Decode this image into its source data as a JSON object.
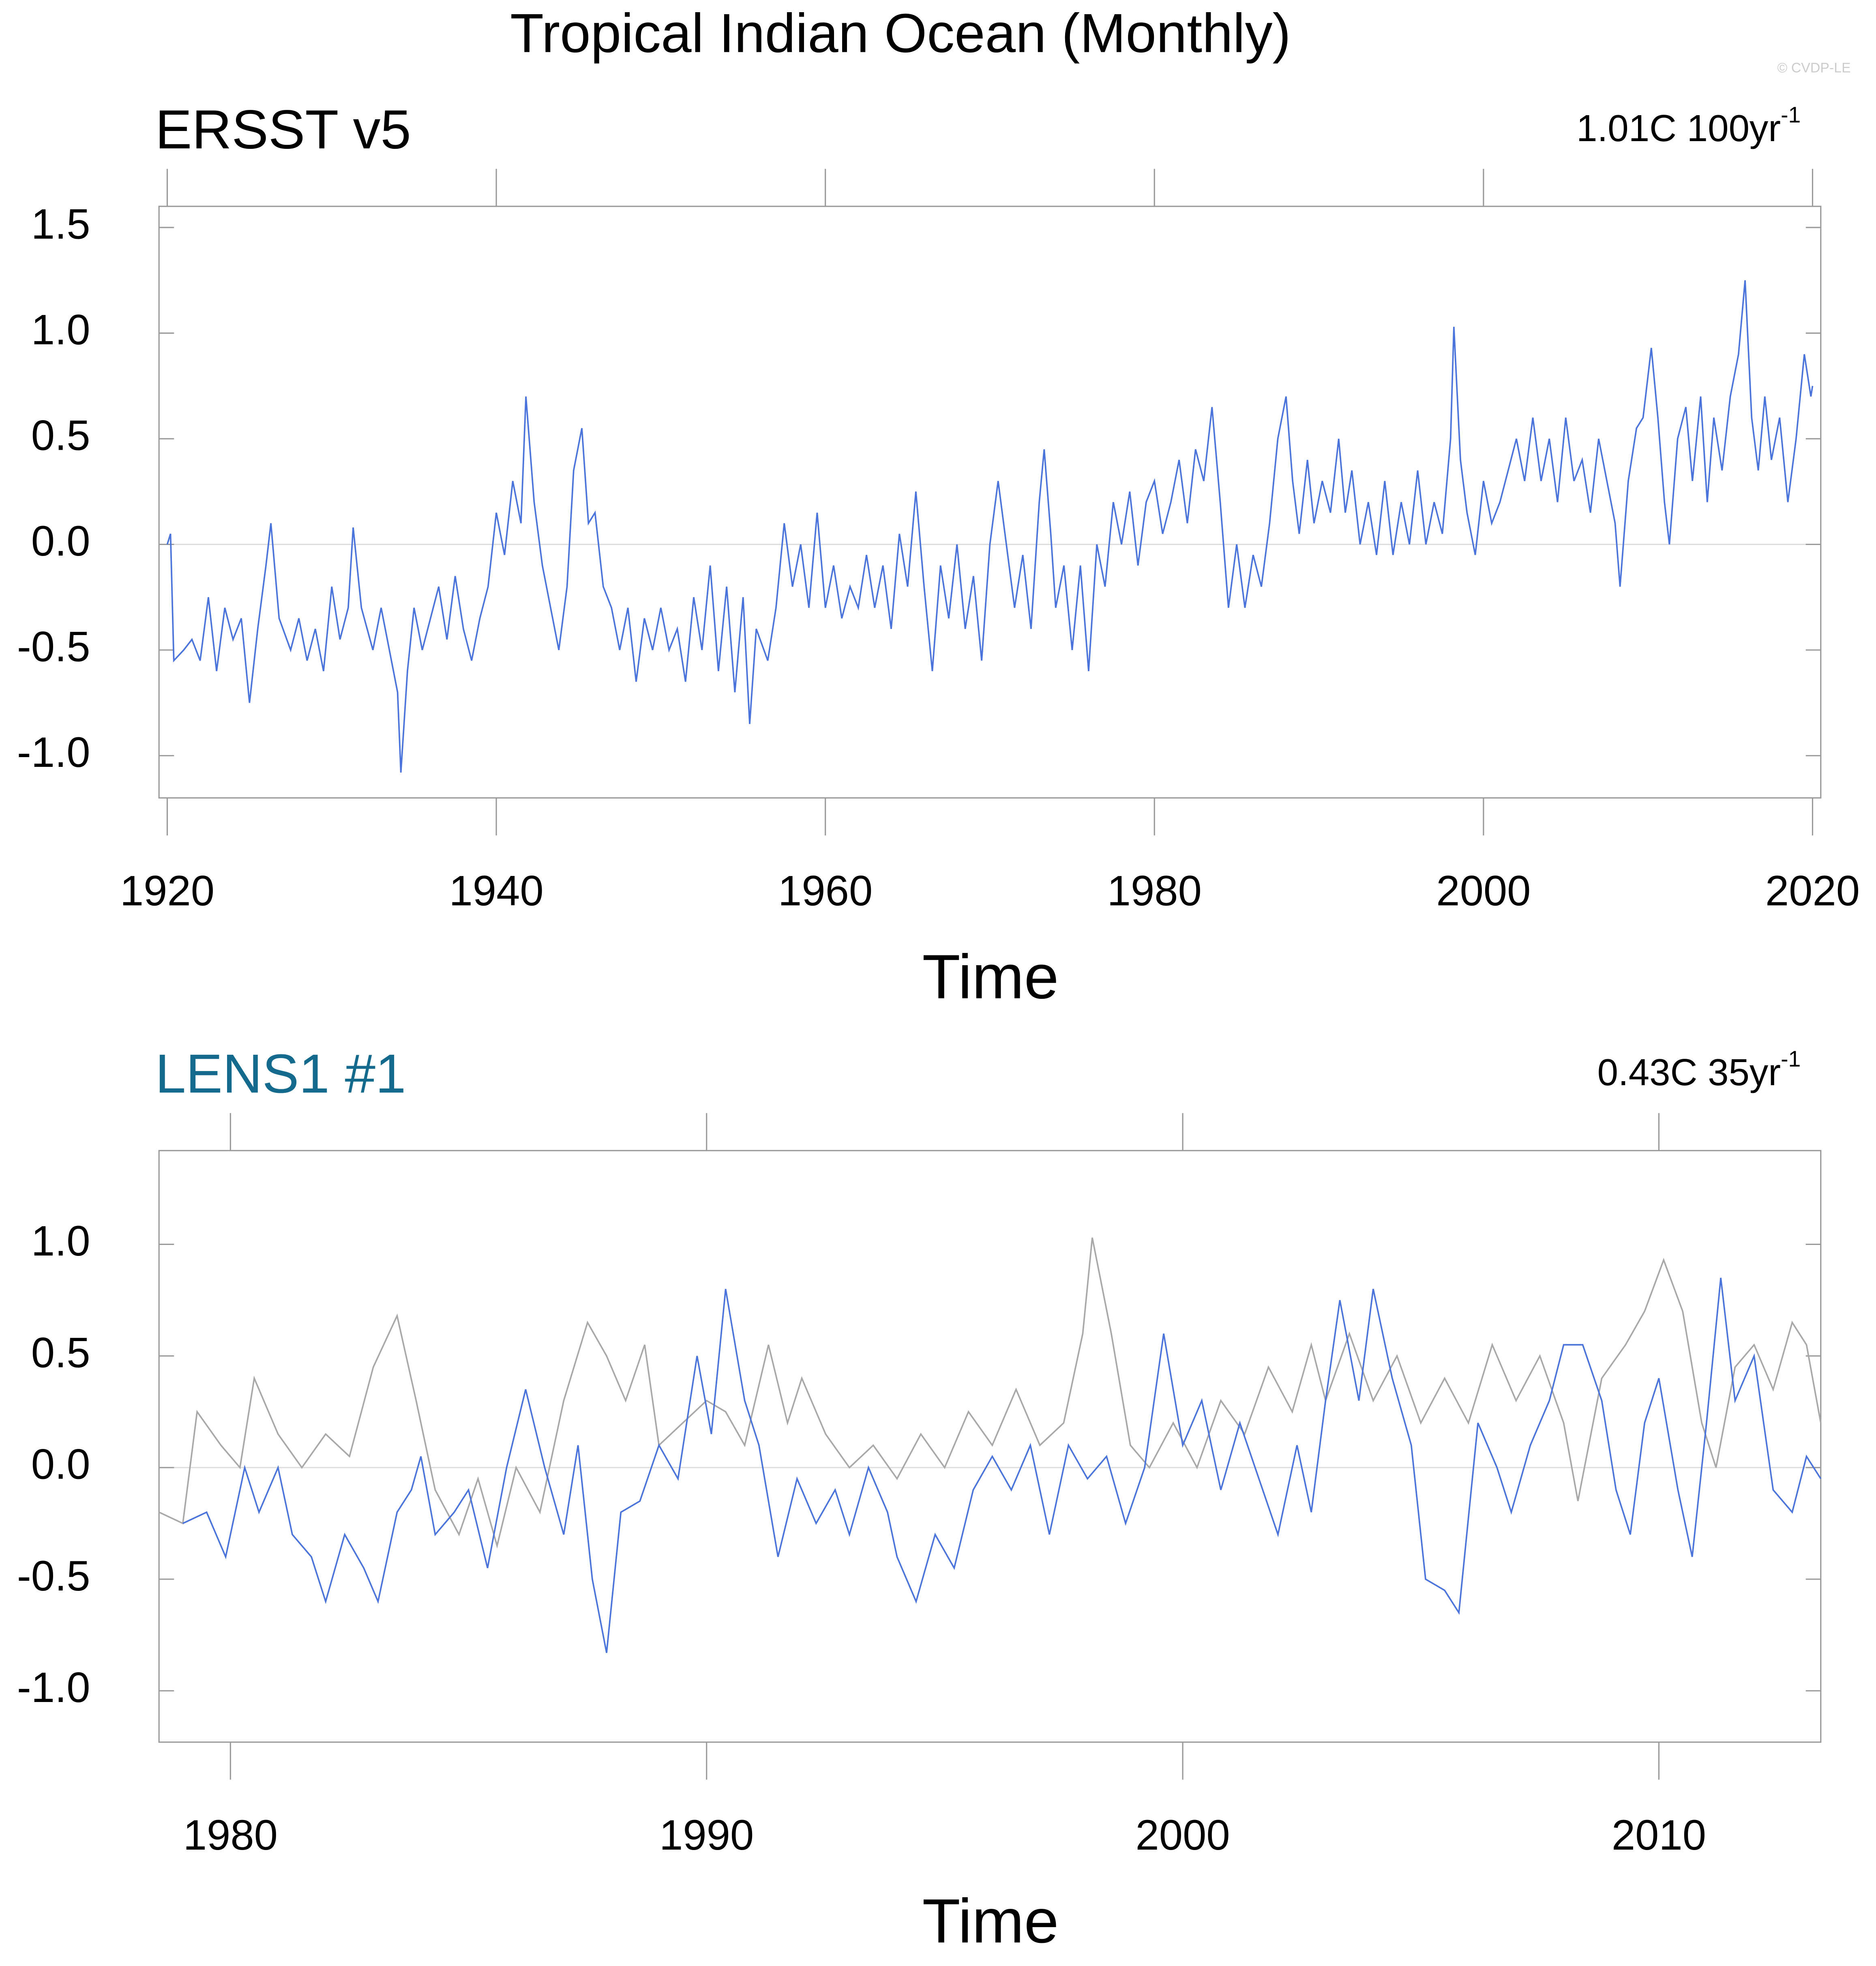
{
  "title": "Tropical Indian Ocean (Monthly)",
  "credit": "© CVDP-LE",
  "chart_data": [
    {
      "type": "line",
      "title": "ERSST v5",
      "title_color": "#000000",
      "trend": "1.01C 100yr",
      "trend_exp": "-1",
      "xlabel": "Time",
      "xlim": [
        1919.5,
        2020.5
      ],
      "ylim": [
        -1.2,
        1.6
      ],
      "xticks": [
        1920,
        1940,
        1960,
        1980,
        2000,
        2020
      ],
      "yticks": [
        1.5,
        {
          "value": 1,
          "label": "1.0"
        },
        0.5,
        {
          "value": 0,
          "label": "0.0"
        },
        -0.5,
        {
          "value": -1,
          "label": "-1.0"
        }
      ],
      "series": [
        {
          "color": "#4a74db",
          "x": [
            1920.0,
            1920.2,
            1920.4,
            1921,
            1921.5,
            1922,
            1922.5,
            1923,
            1923.5,
            1924,
            1924.5,
            1925,
            1925.5,
            1926,
            1926.3,
            1926.8,
            1927.5,
            1928,
            1928.5,
            1929,
            1929.5,
            1930,
            1930.5,
            1931,
            1931.3,
            1931.8,
            1932.5,
            1933,
            1933.5,
            1934,
            1934.2,
            1934.6,
            1935,
            1935.5,
            1936,
            1936.5,
            1937,
            1937.5,
            1938,
            1938.5,
            1939,
            1939.5,
            1940,
            1940.5,
            1941,
            1941.5,
            1941.8,
            1942.3,
            1942.8,
            1943.3,
            1943.8,
            1944.3,
            1944.7,
            1945.2,
            1945.6,
            1946,
            1946.5,
            1947,
            1947.5,
            1948,
            1948.5,
            1949,
            1949.5,
            1950,
            1950.5,
            1951,
            1951.5,
            1952,
            1952.5,
            1953,
            1953.5,
            1954,
            1954.5,
            1955,
            1955.4,
            1955.8,
            1956.5,
            1957,
            1957.5,
            1958,
            1958.5,
            1959,
            1959.5,
            1960,
            1960.5,
            1961,
            1961.5,
            1962,
            1962.5,
            1963,
            1963.5,
            1964,
            1964.5,
            1965,
            1965.5,
            1966,
            1966.5,
            1967,
            1967.5,
            1968,
            1968.5,
            1969,
            1969.5,
            1970,
            1970.5,
            1971,
            1971.5,
            1972,
            1972.5,
            1973,
            1973.3,
            1973.7,
            1974,
            1974.5,
            1975,
            1975.5,
            1976,
            1976.5,
            1977,
            1977.5,
            1978,
            1978.5,
            1979,
            1979.5,
            1980,
            1980.5,
            1981,
            1981.5,
            1982,
            1982.5,
            1983,
            1983.5,
            1984,
            1984.5,
            1985,
            1985.5,
            1986,
            1986.5,
            1987,
            1987.5,
            1988,
            1988.4,
            1988.8,
            1989.3,
            1989.7,
            1990.2,
            1990.7,
            1991.2,
            1991.6,
            1992,
            1992.5,
            1993,
            1993.5,
            1994,
            1994.5,
            1995,
            1995.5,
            1996,
            1996.5,
            1997,
            1997.5,
            1998,
            1998.2,
            1998.6,
            1999,
            1999.5,
            2000,
            2000.5,
            2001,
            2001.5,
            2002,
            2002.5,
            2003,
            2003.5,
            2004,
            2004.5,
            2005,
            2005.5,
            2006,
            2006.5,
            2007,
            2007.5,
            2008,
            2008.3,
            2008.8,
            2009.3,
            2009.7,
            2010.2,
            2010.6,
            2011,
            2011.3,
            2011.8,
            2012.3,
            2012.7,
            2013.2,
            2013.6,
            2014,
            2014.5,
            2015,
            2015.5,
            2015.9,
            2016.3,
            2016.7,
            2017.1,
            2017.5,
            2018,
            2018.5,
            2019,
            2019.5,
            2019.9,
            2020
          ],
          "values": [
            0.0,
            0.05,
            -0.55,
            -0.5,
            -0.45,
            -0.55,
            -0.25,
            -0.6,
            -0.3,
            -0.45,
            -0.35,
            -0.75,
            -0.4,
            -0.1,
            0.1,
            -0.35,
            -0.5,
            -0.35,
            -0.55,
            -0.4,
            -0.6,
            -0.2,
            -0.45,
            -0.3,
            0.08,
            -0.3,
            -0.5,
            -0.3,
            -0.5,
            -0.7,
            -1.08,
            -0.6,
            -0.3,
            -0.5,
            -0.35,
            -0.2,
            -0.45,
            -0.15,
            -0.4,
            -0.55,
            -0.35,
            -0.2,
            0.15,
            -0.05,
            0.3,
            0.1,
            0.7,
            0.2,
            -0.1,
            -0.3,
            -0.5,
            -0.2,
            0.35,
            0.55,
            0.1,
            0.15,
            -0.2,
            -0.3,
            -0.5,
            -0.3,
            -0.65,
            -0.35,
            -0.5,
            -0.3,
            -0.5,
            -0.4,
            -0.65,
            -0.25,
            -0.5,
            -0.1,
            -0.6,
            -0.2,
            -0.7,
            -0.25,
            -0.85,
            -0.4,
            -0.55,
            -0.3,
            0.1,
            -0.2,
            0.0,
            -0.3,
            0.15,
            -0.3,
            -0.1,
            -0.35,
            -0.2,
            -0.3,
            -0.05,
            -0.3,
            -0.1,
            -0.4,
            0.05,
            -0.2,
            0.25,
            -0.2,
            -0.6,
            -0.1,
            -0.35,
            0.0,
            -0.4,
            -0.15,
            -0.55,
            0.0,
            0.3,
            0.0,
            -0.3,
            -0.05,
            -0.4,
            0.2,
            0.45,
            0.05,
            -0.3,
            -0.1,
            -0.5,
            -0.1,
            -0.6,
            0.0,
            -0.2,
            0.2,
            0.0,
            0.25,
            -0.1,
            0.2,
            0.3,
            0.05,
            0.2,
            0.4,
            0.1,
            0.45,
            0.3,
            0.65,
            0.2,
            -0.3,
            0.0,
            -0.3,
            -0.05,
            -0.2,
            0.1,
            0.5,
            0.7,
            0.3,
            0.05,
            0.4,
            0.1,
            0.3,
            0.15,
            0.5,
            0.15,
            0.35,
            0.0,
            0.2,
            -0.05,
            0.3,
            -0.05,
            0.2,
            0.0,
            0.35,
            0.0,
            0.2,
            0.05,
            0.5,
            1.03,
            0.4,
            0.15,
            -0.05,
            0.3,
            0.1,
            0.2,
            0.35,
            0.5,
            0.3,
            0.6,
            0.3,
            0.5,
            0.2,
            0.6,
            0.3,
            0.4,
            0.15,
            0.5,
            0.3,
            0.1,
            -0.2,
            0.3,
            0.55,
            0.6,
            0.93,
            0.6,
            0.2,
            0.0,
            0.5,
            0.65,
            0.3,
            0.7,
            0.2,
            0.6,
            0.35,
            0.7,
            0.9,
            1.25,
            0.6,
            0.35,
            0.7,
            0.4,
            0.6,
            0.2,
            0.5,
            0.9,
            0.7,
            0.75
          ]
        }
      ]
    },
    {
      "type": "line",
      "title": "LENS1 #1",
      "title_color": "#146a8c",
      "trend": "0.43C 35yr",
      "trend_exp": "-1",
      "xlabel": "Time",
      "xlim": [
        1978.5,
        2013.4
      ],
      "ylim": [
        -1.23,
        1.42
      ],
      "xticks": [
        1980,
        1990,
        2000,
        2010
      ],
      "yticks": [
        {
          "value": 1,
          "label": "1.0"
        },
        0.5,
        {
          "value": 0,
          "label": "0.0"
        },
        -0.5,
        {
          "value": -1,
          "label": "-1.0"
        }
      ],
      "series": [
        {
          "color": "#a8a8a8",
          "x": [
            1978.5,
            1979,
            1979.3,
            1979.8,
            1980.2,
            1980.5,
            1981,
            1981.5,
            1982,
            1982.5,
            1983,
            1983.5,
            1983.9,
            1984.3,
            1984.8,
            1985.2,
            1985.6,
            1986,
            1986.5,
            1987,
            1987.5,
            1987.9,
            1988.3,
            1988.7,
            1989,
            1989.5,
            1990,
            1990.4,
            1990.8,
            1991.3,
            1991.7,
            1992,
            1992.5,
            1993,
            1993.5,
            1994,
            1994.5,
            1995,
            1995.5,
            1996,
            1996.5,
            1997,
            1997.5,
            1997.9,
            1998.1,
            1998.5,
            1998.9,
            1999.3,
            1999.8,
            2000.3,
            2000.8,
            2001.3,
            2001.8,
            2002.3,
            2002.7,
            2003,
            2003.5,
            2004,
            2004.5,
            2005,
            2005.5,
            2006,
            2006.5,
            2007,
            2007.5,
            2008,
            2008.3,
            2008.8,
            2009.3,
            2009.7,
            2010.1,
            2010.5,
            2010.9,
            2011.2,
            2011.6,
            2012,
            2012.4,
            2012.8,
            2013.1,
            2013.4
          ],
          "values": [
            -0.2,
            -0.25,
            0.25,
            0.1,
            0.0,
            0.4,
            0.15,
            0.0,
            0.15,
            0.05,
            0.45,
            0.68,
            0.3,
            -0.1,
            -0.3,
            -0.05,
            -0.35,
            0.0,
            -0.2,
            0.3,
            0.65,
            0.5,
            0.3,
            0.55,
            0.1,
            0.2,
            0.3,
            0.25,
            0.1,
            0.55,
            0.2,
            0.4,
            0.15,
            0.0,
            0.1,
            -0.05,
            0.15,
            0.0,
            0.25,
            0.1,
            0.35,
            0.1,
            0.2,
            0.6,
            1.03,
            0.6,
            0.1,
            0.0,
            0.2,
            0.0,
            0.3,
            0.15,
            0.45,
            0.25,
            0.55,
            0.3,
            0.6,
            0.3,
            0.5,
            0.2,
            0.4,
            0.2,
            0.55,
            0.3,
            0.5,
            0.2,
            -0.15,
            0.4,
            0.55,
            0.7,
            0.93,
            0.7,
            0.2,
            0.0,
            0.45,
            0.55,
            0.35,
            0.65,
            0.55,
            0.2
          ]
        },
        {
          "color": "#4a74db",
          "x": [
            1979,
            1979.5,
            1979.9,
            1980.3,
            1980.6,
            1981,
            1981.3,
            1981.7,
            1982,
            1982.4,
            1982.8,
            1983.1,
            1983.5,
            1983.8,
            1984,
            1984.3,
            1984.7,
            1985,
            1985.4,
            1985.8,
            1986.2,
            1986.6,
            1987,
            1987.3,
            1987.6,
            1987.9,
            1988.2,
            1988.6,
            1989,
            1989.4,
            1989.8,
            1990.1,
            1990.4,
            1990.8,
            1991.1,
            1991.5,
            1991.9,
            1992.3,
            1992.7,
            1993,
            1993.4,
            1993.8,
            1994,
            1994.4,
            1994.8,
            1995.2,
            1995.6,
            1996,
            1996.4,
            1996.8,
            1997.2,
            1997.6,
            1998,
            1998.4,
            1998.8,
            1999.2,
            1999.6,
            2000,
            2000.4,
            2000.8,
            2001.2,
            2001.6,
            2002,
            2002.4,
            2002.7,
            2003,
            2003.3,
            2003.7,
            2004,
            2004.4,
            2004.8,
            2005.1,
            2005.5,
            2005.8,
            2006.2,
            2006.6,
            2006.9,
            2007.3,
            2007.7,
            2008,
            2008.4,
            2008.8,
            2009.1,
            2009.4,
            2009.7,
            2010,
            2010.4,
            2010.7,
            2011,
            2011.3,
            2011.6,
            2012,
            2012.4,
            2012.8,
            2013.1,
            2013.4
          ],
          "values": [
            -0.25,
            -0.2,
            -0.4,
            0.0,
            -0.2,
            0.0,
            -0.3,
            -0.4,
            -0.6,
            -0.3,
            -0.45,
            -0.6,
            -0.2,
            -0.1,
            0.05,
            -0.3,
            -0.2,
            -0.1,
            -0.45,
            0.0,
            0.35,
            0.0,
            -0.3,
            0.1,
            -0.5,
            -0.83,
            -0.2,
            -0.15,
            0.1,
            -0.05,
            0.5,
            0.15,
            0.8,
            0.3,
            0.1,
            -0.4,
            -0.05,
            -0.25,
            -0.1,
            -0.3,
            0.0,
            -0.2,
            -0.4,
            -0.6,
            -0.3,
            -0.45,
            -0.1,
            0.05,
            -0.1,
            0.1,
            -0.3,
            0.1,
            -0.05,
            0.05,
            -0.25,
            0.0,
            0.6,
            0.1,
            0.3,
            -0.1,
            0.2,
            -0.05,
            -0.3,
            0.1,
            -0.2,
            0.3,
            0.75,
            0.3,
            0.8,
            0.4,
            0.1,
            -0.5,
            -0.55,
            -0.65,
            0.2,
            0.0,
            -0.2,
            0.1,
            0.3,
            0.55,
            0.55,
            0.3,
            -0.1,
            -0.3,
            0.2,
            0.4,
            -0.1,
            -0.4,
            0.2,
            0.85,
            0.3,
            0.5,
            -0.1,
            -0.2,
            0.05,
            -0.05
          ]
        }
      ]
    }
  ]
}
